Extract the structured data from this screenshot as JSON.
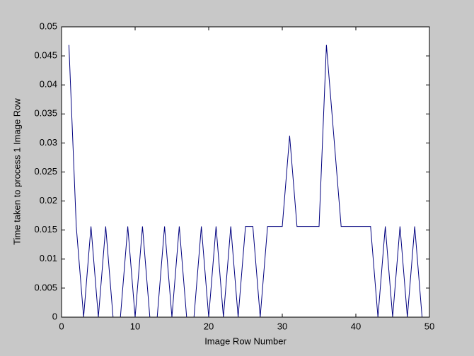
{
  "chart_data": {
    "type": "line",
    "xlabel": "Image Row Number",
    "ylabel": "Time taken to process 1 Image Row",
    "x": [
      1,
      2,
      3,
      4,
      5,
      6,
      7,
      8,
      9,
      10,
      11,
      12,
      13,
      14,
      15,
      16,
      17,
      18,
      19,
      20,
      21,
      22,
      23,
      24,
      25,
      26,
      27,
      28,
      29,
      30,
      31,
      32,
      33,
      34,
      35,
      36,
      37,
      38,
      39,
      40,
      41,
      42,
      43,
      44,
      45,
      46,
      47,
      48,
      49
    ],
    "series": [
      {
        "color": "#00007f",
        "values": [
          0.046875,
          0.015625,
          0,
          0.015625,
          0,
          0.015625,
          0,
          0,
          0.015625,
          0,
          0.015625,
          0,
          0,
          0.015625,
          0,
          0.015625,
          0,
          0,
          0.015625,
          0,
          0.015625,
          0,
          0.015625,
          0,
          0.015625,
          0.015625,
          0,
          0.015625,
          0.015625,
          0.015625,
          0.03125,
          0.015625,
          0.015625,
          0.015625,
          0.015625,
          0.046875,
          0.03125,
          0.015625,
          0.015625,
          0.015625,
          0.015625,
          0.015625,
          0,
          0.015625,
          0,
          0.015625,
          0,
          0.015625,
          0
        ]
      }
    ],
    "xlim": [
      0,
      50
    ],
    "xticks": [
      0,
      10,
      20,
      30,
      40,
      50
    ],
    "ylim": [
      0,
      0.05
    ],
    "yticks": [
      0,
      0.005,
      0.01,
      0.015,
      0.02,
      0.025,
      0.03,
      0.035,
      0.04,
      0.045,
      0.05
    ],
    "grid": false
  }
}
